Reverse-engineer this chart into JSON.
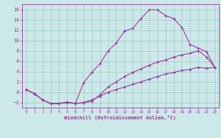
{
  "xlabel": "Windchill (Refroidissement éolien,°C)",
  "background_color": "#cce8e8",
  "line_color": "#993399",
  "xlim": [
    -0.5,
    23.5
  ],
  "ylim": [
    -3.0,
    17.0
  ],
  "yticks": [
    -2,
    0,
    2,
    4,
    6,
    8,
    10,
    12,
    14,
    16
  ],
  "xticks": [
    0,
    1,
    2,
    3,
    4,
    5,
    6,
    7,
    8,
    9,
    10,
    11,
    12,
    13,
    14,
    15,
    16,
    17,
    18,
    19,
    20,
    21,
    22,
    23
  ],
  "line1_x": [
    0,
    1,
    2,
    3,
    4,
    5,
    6,
    7,
    8,
    9,
    10,
    11,
    12,
    13,
    14,
    15,
    16,
    17,
    18,
    19,
    20,
    21,
    22,
    23
  ],
  "line1_y": [
    0.5,
    -0.3,
    -1.5,
    -2.2,
    -2.2,
    -1.9,
    -2.2,
    1.8,
    3.8,
    5.5,
    8.0,
    9.5,
    11.8,
    12.3,
    14.2,
    15.9,
    15.9,
    14.8,
    14.2,
    12.5,
    9.2,
    8.5,
    7.8,
    4.8
  ],
  "line2_x": [
    0,
    1,
    2,
    3,
    4,
    5,
    6,
    7,
    8,
    9,
    10,
    11,
    12,
    13,
    14,
    15,
    16,
    17,
    18,
    19,
    20,
    21,
    22,
    23
  ],
  "line2_y": [
    0.5,
    -0.3,
    -1.5,
    -2.2,
    -2.2,
    -2.0,
    -2.2,
    -2.0,
    -1.8,
    -0.5,
    1.0,
    2.0,
    3.0,
    3.8,
    4.5,
    5.2,
    5.8,
    6.2,
    6.8,
    7.2,
    7.5,
    8.0,
    6.8,
    4.8
  ],
  "line3_x": [
    0,
    1,
    2,
    3,
    4,
    5,
    6,
    7,
    8,
    9,
    10,
    11,
    12,
    13,
    14,
    15,
    16,
    17,
    18,
    19,
    20,
    21,
    22,
    23
  ],
  "line3_y": [
    0.5,
    -0.3,
    -1.5,
    -2.2,
    -2.2,
    -2.0,
    -2.2,
    -2.0,
    -1.5,
    -0.8,
    0.0,
    0.5,
    1.0,
    1.5,
    2.0,
    2.5,
    3.0,
    3.5,
    3.8,
    4.2,
    4.4,
    4.8,
    4.6,
    4.8
  ]
}
